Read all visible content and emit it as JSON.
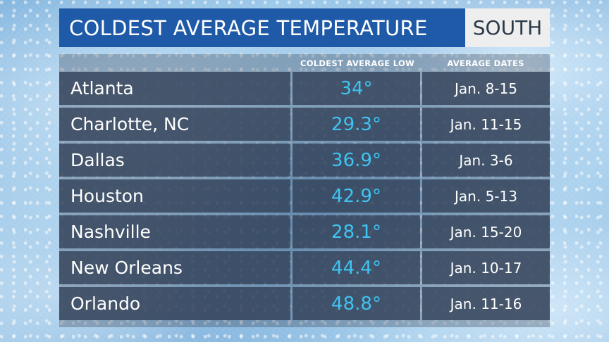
{
  "title": "COLDEST AVERAGE TEMPERATURE",
  "region": "SOUTH",
  "headers": {
    "low": "COLDEST AVERAGE LOW",
    "dates": "AVERAGE DATES"
  },
  "rows": [
    {
      "city": "Atlanta",
      "low": "34°",
      "dates": "Jan. 8-15"
    },
    {
      "city": "Charlotte, NC",
      "low": "29.3°",
      "dates": "Jan. 11-15"
    },
    {
      "city": "Dallas",
      "low": "36.9°",
      "dates": "Jan. 3-6"
    },
    {
      "city": "Houston",
      "low": "42.9°",
      "dates": "Jan. 5-13"
    },
    {
      "city": "Nashville",
      "low": "28.1°",
      "dates": "Jan. 15-20"
    },
    {
      "city": "New Orleans",
      "low": "44.4°",
      "dates": "Jan. 10-17"
    },
    {
      "city": "Orlando",
      "low": "48.8°",
      "dates": "Jan. 11-16"
    }
  ],
  "colors": {
    "title_bar": "#1e5aa8",
    "temperature_value": "#3fc3f0",
    "row_background": "#303e54"
  }
}
